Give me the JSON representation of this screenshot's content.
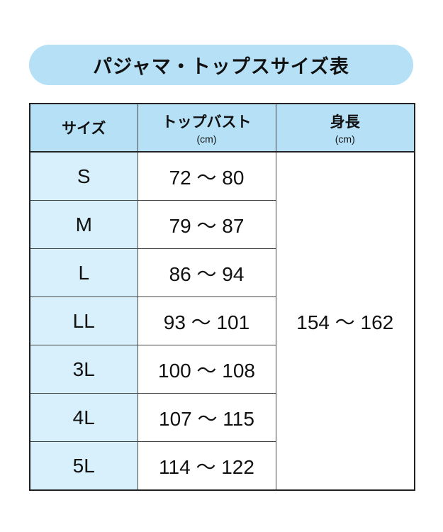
{
  "title": "パジャマ・トップスサイズ表",
  "headers": [
    {
      "label": "サイズ",
      "unit": ""
    },
    {
      "label": "トップバスト",
      "unit": "(cm)"
    },
    {
      "label": "身長",
      "unit": "(cm)"
    }
  ],
  "rows": [
    {
      "size": "S",
      "bust": "72 〜 80"
    },
    {
      "size": "M",
      "bust": "79 〜 87"
    },
    {
      "size": "L",
      "bust": "86 〜 94"
    },
    {
      "size": "LL",
      "bust": "93 〜 101"
    },
    {
      "size": "3L",
      "bust": "100 〜 108"
    },
    {
      "size": "4L",
      "bust": "107 〜 115"
    },
    {
      "size": "5L",
      "bust": "114 〜 122"
    }
  ],
  "height_all": "154 〜 162",
  "colors": {
    "header_bg": "#b5e0f6",
    "size_col_bg": "#d8f0fb"
  }
}
